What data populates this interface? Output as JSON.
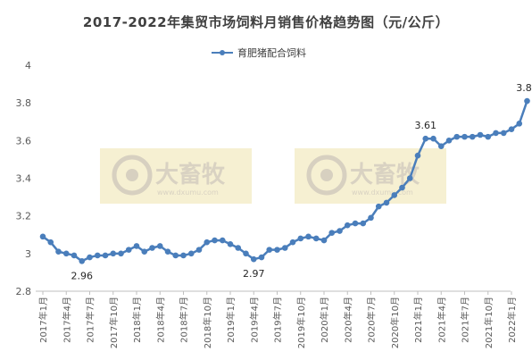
{
  "chart_data": {
    "type": "line",
    "title": "2017-2022年集贸市场饲料月销售价格趋势图（元/公斤）",
    "xlabel": "",
    "ylabel": "",
    "ylim": [
      2.8,
      4
    ],
    "yticks": [
      "2.8",
      "3",
      "3.2",
      "3.4",
      "3.6",
      "3.8",
      "4"
    ],
    "grid": false,
    "legend": "top",
    "color": "#4a7ebb",
    "x": [
      "2017年1月",
      "2017年2月",
      "2017年3月",
      "2017年4月",
      "2017年5月",
      "2017年6月",
      "2017年7月",
      "2017年8月",
      "2017年9月",
      "2017年10月",
      "2017年11月",
      "2017年12月",
      "2018年1月",
      "2018年2月",
      "2018年3月",
      "2018年4月",
      "2018年5月",
      "2018年6月",
      "2018年7月",
      "2018年8月",
      "2018年9月",
      "2018年10月",
      "2018年11月",
      "2018年12月",
      "2019年1月",
      "2019年2月",
      "2019年3月",
      "2019年4月",
      "2019年5月",
      "2019年6月",
      "2019年7月",
      "2019年8月",
      "2019年9月",
      "2019年10月",
      "2019年11月",
      "2019年12月",
      "2020年1月",
      "2020年2月",
      "2020年3月",
      "2020年4月",
      "2020年5月",
      "2020年6月",
      "2020年7月",
      "2020年8月",
      "2020年9月",
      "2020年10月",
      "2020年11月",
      "2020年12月",
      "2021年1月",
      "2021年2月",
      "2021年3月",
      "2021年4月",
      "2021年5月",
      "2021年6月",
      "2021年7月",
      "2021年8月",
      "2021年9月",
      "2021年10月",
      "2021年11月",
      "2021年12月",
      "2022年1月",
      "2022年2月",
      "2022年3月"
    ],
    "x_tick_labels": [
      "2017年1月",
      "2017年4月",
      "2017年7月",
      "2017年10月",
      "2018年1月",
      "2018年4月",
      "2018年7月",
      "2018年10月",
      "2019年1月",
      "2019年4月",
      "2019年7月",
      "2019年10月",
      "2020年1月",
      "2020年4月",
      "2020年7月",
      "2020年10月",
      "2021年1月",
      "2021年4月",
      "2021年7月",
      "2021年10月",
      "2022年1月"
    ],
    "series": [
      {
        "name": "育肥猪配合饲料",
        "values": [
          3.09,
          3.06,
          3.01,
          3.0,
          2.99,
          2.96,
          2.98,
          2.99,
          2.99,
          3.0,
          3.0,
          3.02,
          3.04,
          3.01,
          3.03,
          3.04,
          3.01,
          2.99,
          2.99,
          3.0,
          3.02,
          3.06,
          3.07,
          3.07,
          3.05,
          3.03,
          3.0,
          2.97,
          2.98,
          3.02,
          3.02,
          3.03,
          3.06,
          3.08,
          3.09,
          3.08,
          3.07,
          3.11,
          3.12,
          3.15,
          3.16,
          3.16,
          3.19,
          3.25,
          3.27,
          3.31,
          3.35,
          3.4,
          3.52,
          3.61,
          3.61,
          3.57,
          3.6,
          3.62,
          3.62,
          3.62,
          3.63,
          3.62,
          3.64,
          3.64,
          3.66,
          3.69,
          3.81
        ]
      }
    ],
    "annotations": [
      {
        "x": "2017年6月",
        "text": "2.96"
      },
      {
        "x": "2019年4月",
        "text": "2.97"
      },
      {
        "x": "2021年2月",
        "text": "3.61"
      },
      {
        "x": "2022年3月",
        "text": "3.81"
      }
    ],
    "watermarks": [
      {
        "text": "大畜牧",
        "subtext": "www.dxumu.com"
      },
      {
        "text": "大畜牧",
        "subtext": "www.dxumu.com"
      }
    ]
  }
}
